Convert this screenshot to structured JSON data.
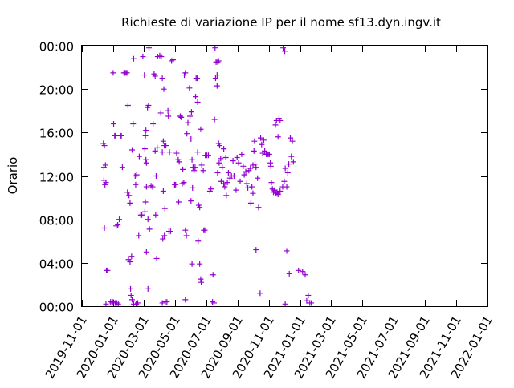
{
  "chart_data": {
    "type": "scatter",
    "title": "Richieste di variazione IP per il nome sf13.dyn.ingv.it",
    "xlabel": "",
    "ylabel": "Orario",
    "x_axis": {
      "type": "date",
      "min": "2019-11-01",
      "max": "2022-01-01",
      "ticks": [
        "2019-11-01",
        "2020-01-01",
        "2020-03-01",
        "2020-05-01",
        "2020-07-01",
        "2020-09-01",
        "2020-11-01",
        "2021-01-01",
        "2021-03-01",
        "2021-05-01",
        "2021-07-01",
        "2021-09-01",
        "2021-11-01",
        "2022-01-01"
      ]
    },
    "y_axis": {
      "unit": "hours",
      "min": 0,
      "max": 24,
      "ticks": [
        0,
        4,
        8,
        12,
        16,
        20,
        24
      ],
      "tick_labels": [
        "00:00",
        "04:00",
        "08:00",
        "12:00",
        "16:00",
        "20:00",
        "00:00"
      ]
    },
    "grid": false,
    "legend": "none",
    "marker": "+",
    "color": "#9400d3",
    "series": [
      {
        "points": [
          [
            "2019-12-13",
            15.0
          ],
          [
            "2019-12-15",
            14.8
          ],
          [
            "2019-12-14",
            12.8
          ],
          [
            "2019-12-17",
            13.0
          ],
          [
            "2019-12-14",
            11.6
          ],
          [
            "2019-12-16",
            11.2
          ],
          [
            "2019-12-18",
            11.4
          ],
          [
            "2019-12-15",
            7.2
          ],
          [
            "2019-12-19",
            3.3
          ],
          [
            "2019-12-21",
            3.3
          ],
          [
            "2019-12-18",
            0.2
          ],
          [
            "2019-12-27",
            0.4
          ],
          [
            "2019-12-30",
            0.3
          ],
          [
            "2020-01-01",
            0.4
          ],
          [
            "2020-01-05",
            0.3
          ],
          [
            "2020-01-08",
            0.3
          ],
          [
            "2020-01-11",
            0.2
          ],
          [
            "2020-01-01",
            21.5
          ],
          [
            "2020-01-02",
            16.8
          ],
          [
            "2020-01-04",
            15.7
          ],
          [
            "2020-01-06",
            15.7
          ],
          [
            "2020-01-15",
            15.7
          ],
          [
            "2020-01-17",
            15.7
          ],
          [
            "2020-01-10",
            7.5
          ],
          [
            "2020-01-13",
            8.0
          ],
          [
            "2020-01-07",
            7.4
          ],
          [
            "2020-01-22",
            21.5
          ],
          [
            "2020-01-24",
            21.5
          ],
          [
            "2020-01-26",
            21.5
          ],
          [
            "2020-01-28",
            21.5
          ],
          [
            "2020-01-19",
            12.8
          ],
          [
            "2020-01-30",
            18.5
          ],
          [
            "2020-01-29",
            10.5
          ],
          [
            "2020-02-01",
            10.2
          ],
          [
            "2020-02-03",
            9.5
          ],
          [
            "2020-01-31",
            4.3
          ],
          [
            "2020-02-03",
            4.1
          ],
          [
            "2020-02-06",
            4.6
          ],
          [
            "2020-02-04",
            1.6
          ],
          [
            "2020-02-05",
            1.0
          ],
          [
            "2020-02-07",
            0.6
          ],
          [
            "2020-02-10",
            0.2
          ],
          [
            "2020-02-15",
            0.2
          ],
          [
            "2020-02-18",
            0.3
          ],
          [
            "2020-02-10",
            22.8
          ],
          [
            "2020-02-09",
            16.8
          ],
          [
            "2020-02-07",
            14.4
          ],
          [
            "2020-02-13",
            12.0
          ],
          [
            "2020-02-16",
            12.1
          ],
          [
            "2020-02-14",
            11.2
          ],
          [
            "2020-02-21",
            13.8
          ],
          [
            "2020-02-24",
            8.4
          ],
          [
            "2020-02-26",
            8.4
          ],
          [
            "2020-02-20",
            6.5
          ],
          [
            "2020-02-28",
            23.0
          ],
          [
            "2020-03-02",
            21.3
          ],
          [
            "2020-03-05",
            16.2
          ],
          [
            "2020-03-04",
            15.7
          ],
          [
            "2020-03-03",
            14.5
          ],
          [
            "2020-03-05",
            13.5
          ],
          [
            "2020-03-06",
            13.2
          ],
          [
            "2020-03-06",
            11.0
          ],
          [
            "2020-03-04",
            9.6
          ],
          [
            "2020-03-03",
            8.7
          ],
          [
            "2020-03-06",
            5.0
          ],
          [
            "2020-03-08",
            18.3
          ],
          [
            "2020-03-10",
            18.5
          ],
          [
            "2020-03-09",
            8.0
          ],
          [
            "2020-03-12",
            7.1
          ],
          [
            "2020-03-09",
            1.6
          ],
          [
            "2020-03-11",
            23.8
          ],
          [
            "2020-03-15",
            11.1
          ],
          [
            "2020-03-18",
            11.0
          ],
          [
            "2020-03-21",
            21.4
          ],
          [
            "2020-03-23",
            21.2
          ],
          [
            "2020-03-19",
            16.8
          ],
          [
            "2020-03-23",
            14.3
          ],
          [
            "2020-03-27",
            14.6
          ],
          [
            "2020-03-25",
            12.0
          ],
          [
            "2020-03-24",
            8.4
          ],
          [
            "2020-03-26",
            4.4
          ],
          [
            "2020-03-28",
            23.0
          ],
          [
            "2020-04-01",
            23.1
          ],
          [
            "2020-04-04",
            23.0
          ],
          [
            "2020-04-06",
            21.0
          ],
          [
            "2020-04-09",
            20.0
          ],
          [
            "2020-04-03",
            17.8
          ],
          [
            "2020-04-08",
            15.2
          ],
          [
            "2020-04-10",
            14.8
          ],
          [
            "2020-04-13",
            14.8
          ],
          [
            "2020-04-06",
            14.2
          ],
          [
            "2020-04-08",
            10.6
          ],
          [
            "2020-04-07",
            6.2
          ],
          [
            "2020-04-10",
            6.5
          ],
          [
            "2020-04-11",
            9.0
          ],
          [
            "2020-04-06",
            0.3
          ],
          [
            "2020-04-12",
            0.4
          ],
          [
            "2020-04-15",
            0.4
          ],
          [
            "2020-04-17",
            18.0
          ],
          [
            "2020-04-18",
            17.5
          ],
          [
            "2020-04-20",
            14.2
          ],
          [
            "2020-04-19",
            6.9
          ],
          [
            "2020-04-22",
            6.9
          ],
          [
            "2020-04-24",
            22.6
          ],
          [
            "2020-04-27",
            22.7
          ],
          [
            "2020-04-30",
            11.2
          ],
          [
            "2020-05-02",
            11.2
          ],
          [
            "2020-05-04",
            14.1
          ],
          [
            "2020-05-07",
            13.5
          ],
          [
            "2020-05-09",
            13.3
          ],
          [
            "2020-05-11",
            17.5
          ],
          [
            "2020-05-13",
            17.4
          ],
          [
            "2020-05-08",
            9.6
          ],
          [
            "2020-05-16",
            12.6
          ],
          [
            "2020-05-15",
            11.3
          ],
          [
            "2020-05-18",
            11.4
          ],
          [
            "2020-05-21",
            7.0
          ],
          [
            "2020-05-23",
            6.5
          ],
          [
            "2020-05-21",
            0.6
          ],
          [
            "2020-05-19",
            21.3
          ],
          [
            "2020-05-21",
            21.5
          ],
          [
            "2020-05-24",
            15.9
          ],
          [
            "2020-05-26",
            16.9
          ],
          [
            "2020-05-29",
            20.1
          ],
          [
            "2020-05-30",
            17.5
          ],
          [
            "2020-06-02",
            17.9
          ],
          [
            "2020-06-01",
            15.4
          ],
          [
            "2020-06-03",
            13.5
          ],
          [
            "2020-06-05",
            12.8
          ],
          [
            "2020-06-07",
            12.5
          ],
          [
            "2020-06-09",
            12.8
          ],
          [
            "2020-06-04",
            10.9
          ],
          [
            "2020-06-01",
            9.7
          ],
          [
            "2020-06-03",
            3.9
          ],
          [
            "2020-06-11",
            21.0
          ],
          [
            "2020-06-13",
            21.0
          ],
          [
            "2020-06-10",
            19.3
          ],
          [
            "2020-06-14",
            18.8
          ],
          [
            "2020-06-14",
            14.2
          ],
          [
            "2020-06-16",
            9.3
          ],
          [
            "2020-06-18",
            9.1
          ],
          [
            "2020-06-15",
            6.0
          ],
          [
            "2020-06-18",
            3.9
          ],
          [
            "2020-06-20",
            2.5
          ],
          [
            "2020-06-21",
            2.2
          ],
          [
            "2020-06-20",
            16.3
          ],
          [
            "2020-06-22",
            13.0
          ],
          [
            "2020-06-25",
            12.5
          ],
          [
            "2020-06-26",
            7.0
          ],
          [
            "2020-06-28",
            7.0
          ],
          [
            "2020-06-29",
            13.9
          ],
          [
            "2020-07-02",
            13.9
          ],
          [
            "2020-07-05",
            13.9
          ],
          [
            "2020-07-08",
            10.6
          ],
          [
            "2020-07-10",
            10.8
          ],
          [
            "2020-07-14",
            2.9
          ],
          [
            "2020-07-13",
            0.4
          ],
          [
            "2020-07-16",
            0.3
          ],
          [
            "2020-07-17",
            17.2
          ],
          [
            "2020-07-20",
            22.5
          ],
          [
            "2020-07-23",
            22.5
          ],
          [
            "2020-07-25",
            22.6
          ],
          [
            "2020-07-22",
            21.3
          ],
          [
            "2020-07-18",
            23.8
          ],
          [
            "2020-07-19",
            21.0
          ],
          [
            "2020-07-22",
            20.3
          ],
          [
            "2020-07-25",
            15.0
          ],
          [
            "2020-07-27",
            14.8
          ],
          [
            "2020-07-29",
            13.6
          ],
          [
            "2020-07-30",
            11.5
          ],
          [
            "2020-07-23",
            12.3
          ],
          [
            "2020-07-26",
            13.2
          ],
          [
            "2020-08-01",
            12.8
          ],
          [
            "2020-08-04",
            14.5
          ],
          [
            "2020-08-08",
            13.7
          ],
          [
            "2020-08-04",
            11.3
          ],
          [
            "2020-08-06",
            11.0
          ],
          [
            "2020-08-09",
            10.2
          ],
          [
            "2020-08-11",
            11.4
          ],
          [
            "2020-08-13",
            12.3
          ],
          [
            "2020-08-16",
            11.8
          ],
          [
            "2020-08-19",
            12.0
          ],
          [
            "2020-08-22",
            13.4
          ],
          [
            "2020-08-24",
            12.0
          ],
          [
            "2020-08-28",
            10.7
          ],
          [
            "2020-08-30",
            13.7
          ],
          [
            "2020-09-02",
            13.2
          ],
          [
            "2020-09-05",
            11.5
          ],
          [
            "2020-09-08",
            14.0
          ],
          [
            "2020-09-11",
            12.9
          ],
          [
            "2020-09-13",
            12.1
          ],
          [
            "2020-09-16",
            12.4
          ],
          [
            "2020-09-18",
            11.3
          ],
          [
            "2020-09-20",
            10.9
          ],
          [
            "2020-09-22",
            12.5
          ],
          [
            "2020-09-25",
            12.7
          ],
          [
            "2020-09-28",
            11.0
          ],
          [
            "2020-09-30",
            10.4
          ],
          [
            "2020-09-26",
            9.5
          ],
          [
            "2020-09-30",
            13.0
          ],
          [
            "2020-10-02",
            14.3
          ],
          [
            "2020-10-03",
            15.2
          ],
          [
            "2020-10-04",
            13.1
          ],
          [
            "2020-10-06",
            12.8
          ],
          [
            "2020-10-09",
            11.8
          ],
          [
            "2020-10-11",
            9.1
          ],
          [
            "2020-10-06",
            5.2
          ],
          [
            "2020-10-14",
            1.2
          ],
          [
            "2020-10-15",
            15.5
          ],
          [
            "2020-10-17",
            14.9
          ],
          [
            "2020-10-19",
            14.1
          ],
          [
            "2020-10-21",
            15.3
          ],
          [
            "2020-10-23",
            14.3
          ],
          [
            "2020-10-26",
            14.0
          ],
          [
            "2020-10-28",
            14.0
          ],
          [
            "2020-10-30",
            14.0
          ],
          [
            "2020-11-01",
            14.0
          ],
          [
            "2020-11-03",
            13.2
          ],
          [
            "2020-11-05",
            11.4
          ],
          [
            "2020-11-07",
            10.8
          ],
          [
            "2020-11-09",
            10.5
          ],
          [
            "2020-11-11",
            10.7
          ],
          [
            "2020-11-04",
            12.9
          ],
          [
            "2020-11-13",
            16.7
          ],
          [
            "2020-11-15",
            17.1
          ],
          [
            "2020-11-18",
            15.6
          ],
          [
            "2020-11-20",
            17.3
          ],
          [
            "2020-11-22",
            17.1
          ],
          [
            "2020-11-14",
            10.4
          ],
          [
            "2020-11-16",
            10.5
          ],
          [
            "2020-11-18",
            10.3
          ],
          [
            "2020-11-22",
            10.6
          ],
          [
            "2020-11-27",
            11.0
          ],
          [
            "2020-11-30",
            11.5
          ],
          [
            "2020-12-02",
            12.7
          ],
          [
            "2020-12-05",
            11.0
          ],
          [
            "2020-12-07",
            12.3
          ],
          [
            "2020-12-09",
            13.1
          ],
          [
            "2020-12-12",
            15.5
          ],
          [
            "2020-12-14",
            13.8
          ],
          [
            "2020-12-16",
            15.2
          ],
          [
            "2020-12-18",
            13.3
          ],
          [
            "2020-11-28",
            23.8
          ],
          [
            "2020-12-01",
            23.5
          ],
          [
            "2021-01-13",
            0.5
          ],
          [
            "2021-01-19",
            0.3
          ],
          [
            "2021-01-16",
            1.0
          ],
          [
            "2021-01-22",
            0.3
          ],
          [
            "2020-12-05",
            5.1
          ],
          [
            "2021-01-05",
            3.2
          ],
          [
            "2021-01-10",
            2.9
          ],
          [
            "2020-12-10",
            3.0
          ],
          [
            "2020-12-28",
            3.3
          ],
          [
            "2020-12-02",
            0.2
          ]
        ]
      }
    ]
  }
}
